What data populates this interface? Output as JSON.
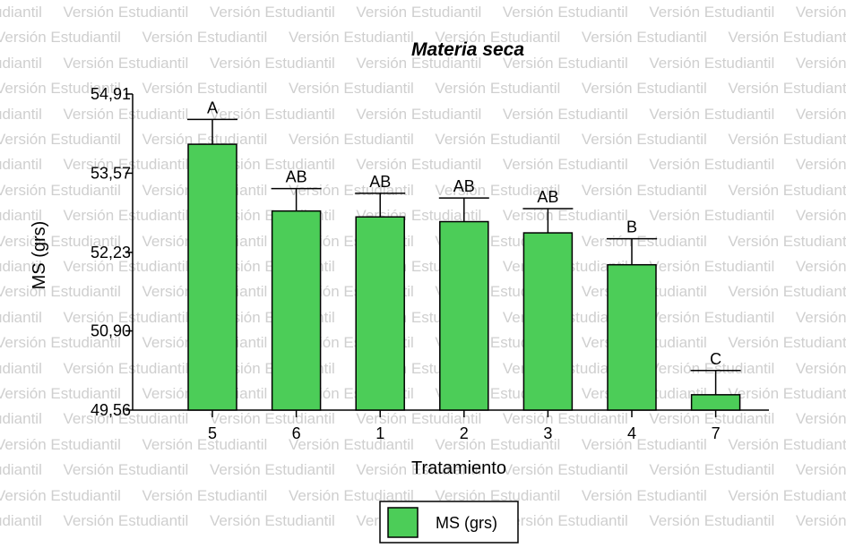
{
  "watermark": {
    "text": "Versión Estudiantil"
  },
  "colors": {
    "bar_fill": "#4ccd58",
    "stroke": "#000000",
    "watermark": "#cfcfcf"
  },
  "chart_data": {
    "type": "bar",
    "title": "Materia seca",
    "xlabel": "Tratamiento",
    "ylabel": "MS (grs)",
    "categories": [
      "5",
      "6",
      "1",
      "2",
      "3",
      "4",
      "7"
    ],
    "series": [
      {
        "name": "MS (grs)",
        "values": [
          54.06,
          52.93,
          52.83,
          52.75,
          52.56,
          52.02,
          49.82
        ],
        "error_upper": [
          54.48,
          53.31,
          53.23,
          53.15,
          52.97,
          52.46,
          50.23
        ],
        "letters": [
          "A",
          "AB",
          "AB",
          "AB",
          "AB",
          "B",
          "C"
        ]
      }
    ],
    "ylim": [
      49.56,
      54.91
    ],
    "yticks": [
      "49,56",
      "50,90",
      "52,23",
      "53,57",
      "54,91"
    ],
    "ytick_values": [
      49.56,
      50.9,
      52.23,
      53.57,
      54.91
    ],
    "legend": {
      "placement": "bottom-center",
      "entries": [
        "MS (grs)"
      ]
    },
    "grid": false
  }
}
